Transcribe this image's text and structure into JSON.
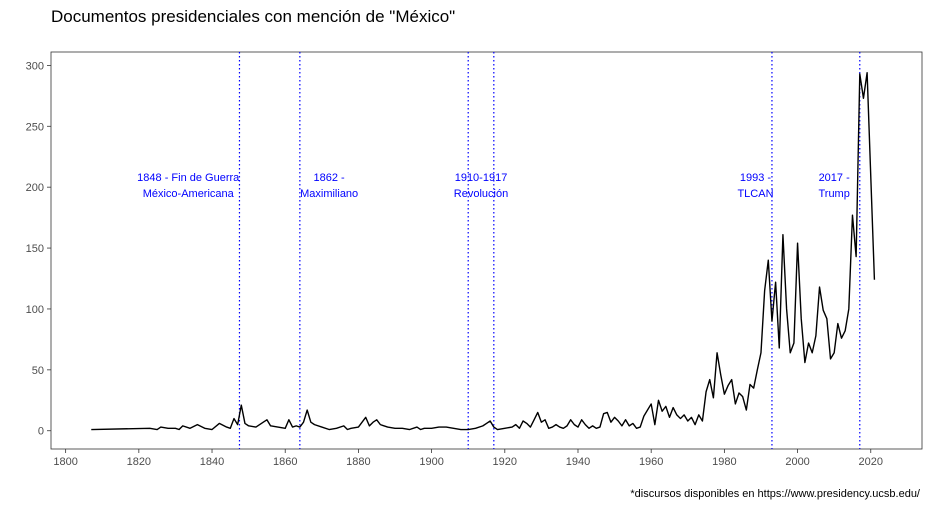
{
  "chart_data": {
    "type": "line",
    "title": "Documentos presidenciales con mención de \"México\"",
    "xlabel": "",
    "ylabel": "",
    "caption": "*discursos disponibles en https://www.presidency.ucsb.edu/",
    "xlim": [
      1796,
      2034
    ],
    "ylim": [
      -15,
      311
    ],
    "x_ticks": [
      1800,
      1820,
      1840,
      1860,
      1880,
      1900,
      1920,
      1940,
      1960,
      1980,
      2000,
      2020
    ],
    "y_ticks": [
      0,
      50,
      100,
      150,
      200,
      250,
      300
    ],
    "grid": false,
    "line_color": "#000000",
    "annotation_color": "#0000ff",
    "series": [
      {
        "values": [
          [
            1807,
            1
          ],
          [
            1823,
            2
          ],
          [
            1825,
            1
          ],
          [
            1826,
            3
          ],
          [
            1828,
            2
          ],
          [
            1830,
            2
          ],
          [
            1831,
            1
          ],
          [
            1832,
            4
          ],
          [
            1834,
            2
          ],
          [
            1836,
            5
          ],
          [
            1838,
            2
          ],
          [
            1840,
            1
          ],
          [
            1842,
            6
          ],
          [
            1844,
            3
          ],
          [
            1845,
            2
          ],
          [
            1846,
            10
          ],
          [
            1847,
            5
          ],
          [
            1848,
            21
          ],
          [
            1849,
            6
          ],
          [
            1850,
            4
          ],
          [
            1852,
            3
          ],
          [
            1854,
            7
          ],
          [
            1855,
            9
          ],
          [
            1856,
            4
          ],
          [
            1858,
            3
          ],
          [
            1860,
            2
          ],
          [
            1861,
            9
          ],
          [
            1862,
            3
          ],
          [
            1863,
            4
          ],
          [
            1864,
            3
          ],
          [
            1865,
            7
          ],
          [
            1866,
            17
          ],
          [
            1867,
            7
          ],
          [
            1868,
            5
          ],
          [
            1870,
            3
          ],
          [
            1872,
            1
          ],
          [
            1874,
            2
          ],
          [
            1876,
            4
          ],
          [
            1877,
            1
          ],
          [
            1878,
            2
          ],
          [
            1880,
            3
          ],
          [
            1881,
            7
          ],
          [
            1882,
            11
          ],
          [
            1883,
            4
          ],
          [
            1884,
            7
          ],
          [
            1885,
            9
          ],
          [
            1886,
            5
          ],
          [
            1888,
            3
          ],
          [
            1890,
            2
          ],
          [
            1892,
            2
          ],
          [
            1894,
            1
          ],
          [
            1896,
            3
          ],
          [
            1897,
            1
          ],
          [
            1898,
            2
          ],
          [
            1900,
            2
          ],
          [
            1902,
            3
          ],
          [
            1904,
            3
          ],
          [
            1906,
            2
          ],
          [
            1908,
            1
          ],
          [
            1910,
            1
          ],
          [
            1912,
            2
          ],
          [
            1914,
            4
          ],
          [
            1915,
            6
          ],
          [
            1916,
            8
          ],
          [
            1917,
            3
          ],
          [
            1918,
            1
          ],
          [
            1920,
            2
          ],
          [
            1922,
            3
          ],
          [
            1923,
            5
          ],
          [
            1924,
            2
          ],
          [
            1925,
            8
          ],
          [
            1926,
            6
          ],
          [
            1927,
            3
          ],
          [
            1928,
            9
          ],
          [
            1929,
            15
          ],
          [
            1930,
            7
          ],
          [
            1931,
            9
          ],
          [
            1932,
            2
          ],
          [
            1933,
            3
          ],
          [
            1934,
            5
          ],
          [
            1935,
            3
          ],
          [
            1936,
            2
          ],
          [
            1937,
            4
          ],
          [
            1938,
            9
          ],
          [
            1939,
            5
          ],
          [
            1940,
            3
          ],
          [
            1941,
            9
          ],
          [
            1942,
            5
          ],
          [
            1943,
            2
          ],
          [
            1944,
            4
          ],
          [
            1945,
            2
          ],
          [
            1946,
            3
          ],
          [
            1947,
            14
          ],
          [
            1948,
            15
          ],
          [
            1949,
            7
          ],
          [
            1950,
            11
          ],
          [
            1951,
            8
          ],
          [
            1952,
            4
          ],
          [
            1953,
            9
          ],
          [
            1954,
            4
          ],
          [
            1955,
            6
          ],
          [
            1956,
            2
          ],
          [
            1957,
            3
          ],
          [
            1958,
            12
          ],
          [
            1959,
            17
          ],
          [
            1960,
            22
          ],
          [
            1961,
            5
          ],
          [
            1962,
            25
          ],
          [
            1963,
            16
          ],
          [
            1964,
            20
          ],
          [
            1965,
            11
          ],
          [
            1966,
            19
          ],
          [
            1967,
            13
          ],
          [
            1968,
            10
          ],
          [
            1969,
            13
          ],
          [
            1970,
            8
          ],
          [
            1971,
            11
          ],
          [
            1972,
            5
          ],
          [
            1973,
            13
          ],
          [
            1974,
            8
          ],
          [
            1975,
            32
          ],
          [
            1976,
            42
          ],
          [
            1977,
            27
          ],
          [
            1978,
            64
          ],
          [
            1979,
            46
          ],
          [
            1980,
            30
          ],
          [
            1981,
            37
          ],
          [
            1982,
            42
          ],
          [
            1983,
            22
          ],
          [
            1984,
            31
          ],
          [
            1985,
            28
          ],
          [
            1986,
            17
          ],
          [
            1987,
            38
          ],
          [
            1988,
            35
          ],
          [
            1989,
            50
          ],
          [
            1990,
            64
          ],
          [
            1991,
            115
          ],
          [
            1992,
            140
          ],
          [
            1993,
            90
          ],
          [
            1994,
            122
          ],
          [
            1995,
            68
          ],
          [
            1996,
            161
          ],
          [
            1997,
            100
          ],
          [
            1998,
            64
          ],
          [
            1999,
            72
          ],
          [
            2000,
            154
          ],
          [
            2001,
            92
          ],
          [
            2002,
            56
          ],
          [
            2003,
            72
          ],
          [
            2004,
            64
          ],
          [
            2005,
            78
          ],
          [
            2006,
            118
          ],
          [
            2007,
            99
          ],
          [
            2008,
            92
          ],
          [
            2009,
            59
          ],
          [
            2010,
            64
          ],
          [
            2011,
            88
          ],
          [
            2012,
            76
          ],
          [
            2013,
            82
          ],
          [
            2014,
            100
          ],
          [
            2015,
            177
          ],
          [
            2016,
            143
          ],
          [
            2017,
            293
          ],
          [
            2018,
            273
          ],
          [
            2019,
            294
          ],
          [
            2021,
            124
          ]
        ]
      }
    ],
    "annotations": [
      {
        "x": 1847.5,
        "label_x": 1833.5,
        "lines": [
          "1848 - Fin de Guerra",
          "México-Americana"
        ]
      },
      {
        "x": 1864,
        "label_x": 1872,
        "lines": [
          "1862 -",
          "Maximiliano"
        ]
      },
      {
        "x": 1910,
        "label_x": 1913.5,
        "lines": [
          "1910-1917",
          "Revolución"
        ]
      },
      {
        "x": 1917,
        "label_x": null,
        "lines": []
      },
      {
        "x": 1993,
        "label_x": 1988.5,
        "lines": [
          "1993 -",
          "TLCAN"
        ]
      },
      {
        "x": 2017,
        "label_x": 2010,
        "lines": [
          "2017 -",
          "Trump"
        ]
      }
    ]
  }
}
